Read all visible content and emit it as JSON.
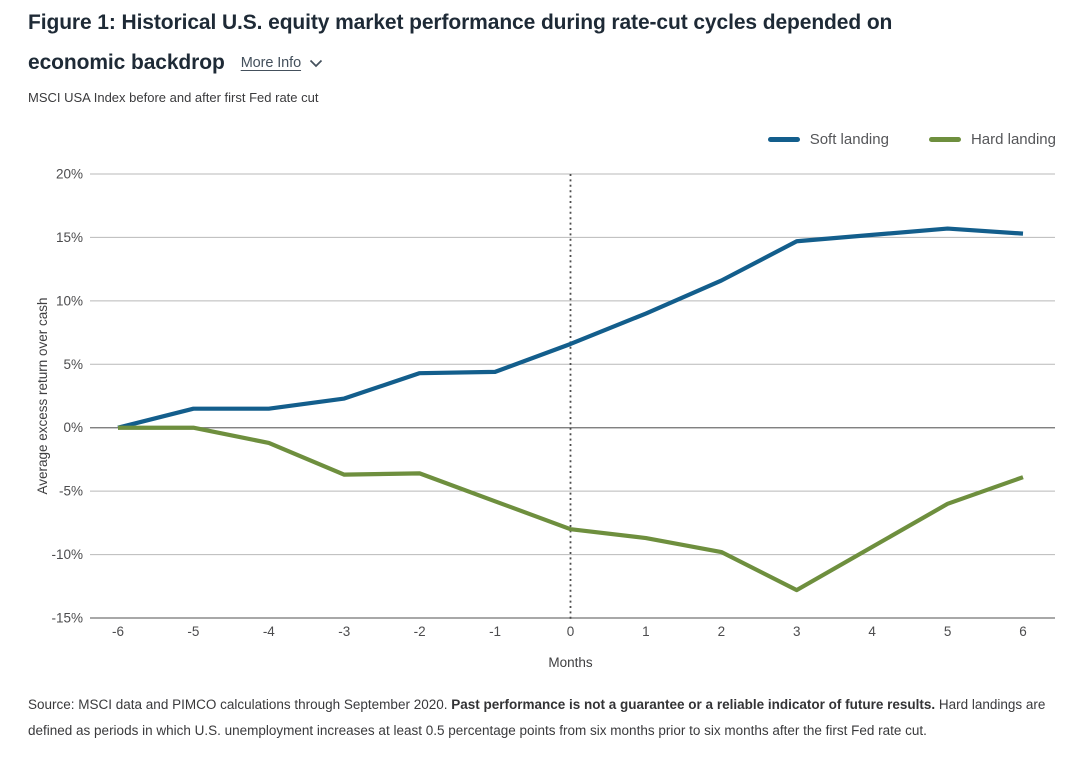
{
  "header": {
    "title_line1": "Figure 1: Historical U.S. equity market performance during rate-cut cycles depended on",
    "title_line2": "economic backdrop",
    "more_info_label": "More Info",
    "subtitle": "MSCI USA Index before and after first Fed rate cut"
  },
  "legend": [
    {
      "label": "Soft landing",
      "color": "#135e8c"
    },
    {
      "label": "Hard landing",
      "color": "#6e8f3e"
    }
  ],
  "chart_data": {
    "type": "line",
    "title": "MSCI USA Index before and after first Fed rate cut",
    "xlabel": "Months",
    "ylabel": "Average excess return over cash",
    "x": [
      -6,
      -5,
      -4,
      -3,
      -2,
      -1,
      0,
      1,
      2,
      3,
      4,
      5,
      6
    ],
    "series": [
      {
        "name": "Soft landing",
        "color": "#135e8c",
        "values": [
          0.0,
          1.5,
          1.5,
          2.3,
          4.3,
          4.4,
          6.6,
          9.0,
          11.6,
          14.7,
          15.2,
          15.7,
          15.3
        ]
      },
      {
        "name": "Hard landing",
        "color": "#6e8f3e",
        "values": [
          0.0,
          0.0,
          -1.2,
          -3.7,
          -3.6,
          -5.8,
          -8.0,
          -8.7,
          -9.8,
          -12.8,
          -9.4,
          -6.0,
          -3.9
        ]
      }
    ],
    "ylim": [
      -15,
      20
    ],
    "xlim": [
      -6,
      6
    ],
    "grid": true,
    "legend_position": "top-right",
    "vline_x": 0,
    "yticks": [
      {
        "value": 20,
        "label": "20%"
      },
      {
        "value": 15,
        "label": "15%"
      },
      {
        "value": 10,
        "label": "10%"
      },
      {
        "value": 5,
        "label": "5%"
      },
      {
        "value": 0,
        "label": "0%"
      },
      {
        "value": -5,
        "label": "-5%"
      },
      {
        "value": -10,
        "label": "-10%"
      },
      {
        "value": -15,
        "label": "-15%"
      }
    ],
    "xticks": [
      {
        "value": -6,
        "label": "-6"
      },
      {
        "value": -5,
        "label": "-5"
      },
      {
        "value": -4,
        "label": "-4"
      },
      {
        "value": -3,
        "label": "-3"
      },
      {
        "value": -2,
        "label": "-2"
      },
      {
        "value": -1,
        "label": "-1"
      },
      {
        "value": 0,
        "label": "0"
      },
      {
        "value": 1,
        "label": "1"
      },
      {
        "value": 2,
        "label": "2"
      },
      {
        "value": 3,
        "label": "3"
      },
      {
        "value": 4,
        "label": "4"
      },
      {
        "value": 5,
        "label": "5"
      },
      {
        "value": 6,
        "label": "6"
      }
    ]
  },
  "footer": {
    "text_before_bold": "Source: MSCI data and PIMCO calculations through September 2020. ",
    "bold": "Past performance is not a guarantee or a reliable indicator of future results.",
    "text_after_bold": " Hard landings are defined as periods in which U.S. unemployment increases at least 0.5 percentage points from six months prior to six months after the first Fed rate cut."
  }
}
